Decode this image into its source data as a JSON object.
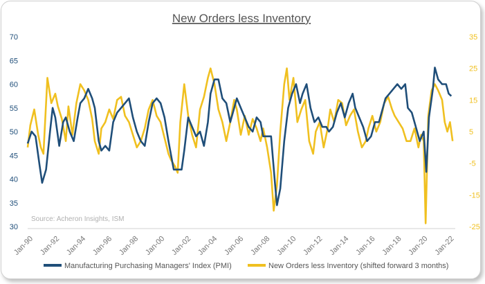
{
  "chart_data": {
    "type": "line",
    "title": "New Orders less Inventory",
    "source": "Source: Acheron Insights, ISM",
    "x_ticks": [
      "Jan-90",
      "Jan-92",
      "Jan-94",
      "Jan-96",
      "Jan-98",
      "Jan-00",
      "Jan-02",
      "Jan-04",
      "Jan-06",
      "Jan-08",
      "Jan-10",
      "Jan-12",
      "Jan-14",
      "Jan-16",
      "Jan-18",
      "Jan-20",
      "Jan-22"
    ],
    "x_range": [
      1990.0,
      2022.5
    ],
    "left_axis": {
      "ylim": [
        30,
        70
      ],
      "ticks": [
        30,
        35,
        40,
        45,
        50,
        55,
        60,
        65,
        70
      ],
      "color": "#1f4e79"
    },
    "right_axis": {
      "ylim": [
        -25,
        35
      ],
      "ticks": [
        -25,
        -15,
        -5,
        5,
        15,
        25,
        35
      ],
      "color": "#f0c020"
    },
    "series": [
      {
        "name": "Manufacturing Purchasing Managers' Index (PMI)",
        "axis": "left",
        "color": "#1f4e79",
        "points": [
          [
            1990.0,
            47.5
          ],
          [
            1990.3,
            50
          ],
          [
            1990.6,
            49
          ],
          [
            1990.9,
            43
          ],
          [
            1991.1,
            39.2
          ],
          [
            1991.4,
            42
          ],
          [
            1991.7,
            50
          ],
          [
            1991.9,
            55
          ],
          [
            1992.1,
            53
          ],
          [
            1992.4,
            47
          ],
          [
            1992.7,
            52
          ],
          [
            1992.9,
            53
          ],
          [
            1993.2,
            50
          ],
          [
            1993.5,
            48
          ],
          [
            1993.8,
            53
          ],
          [
            1994.0,
            56
          ],
          [
            1994.3,
            57
          ],
          [
            1994.6,
            59
          ],
          [
            1994.9,
            57
          ],
          [
            1995.1,
            55
          ],
          [
            1995.4,
            48
          ],
          [
            1995.6,
            46
          ],
          [
            1995.9,
            47
          ],
          [
            1996.2,
            46
          ],
          [
            1996.5,
            52
          ],
          [
            1996.8,
            54
          ],
          [
            1997.1,
            55
          ],
          [
            1997.4,
            56
          ],
          [
            1997.7,
            57
          ],
          [
            1998.0,
            53
          ],
          [
            1998.3,
            50
          ],
          [
            1998.6,
            48
          ],
          [
            1998.9,
            47
          ],
          [
            1999.2,
            52
          ],
          [
            1999.5,
            56
          ],
          [
            1999.8,
            57
          ],
          [
            2000.1,
            56
          ],
          [
            2000.4,
            53
          ],
          [
            2000.7,
            48
          ],
          [
            2000.9,
            45
          ],
          [
            2001.1,
            42
          ],
          [
            2001.4,
            42
          ],
          [
            2001.7,
            42
          ],
          [
            2001.9,
            46
          ],
          [
            2002.2,
            53
          ],
          [
            2002.5,
            51
          ],
          [
            2002.8,
            49
          ],
          [
            2003.1,
            50
          ],
          [
            2003.4,
            47
          ],
          [
            2003.7,
            52
          ],
          [
            2003.9,
            58
          ],
          [
            2004.2,
            61
          ],
          [
            2004.5,
            61
          ],
          [
            2004.8,
            57
          ],
          [
            2005.1,
            56
          ],
          [
            2005.4,
            52
          ],
          [
            2005.7,
            55
          ],
          [
            2005.9,
            57
          ],
          [
            2006.2,
            55
          ],
          [
            2006.5,
            53
          ],
          [
            2006.8,
            51
          ],
          [
            2007.1,
            50
          ],
          [
            2007.4,
            53
          ],
          [
            2007.7,
            52
          ],
          [
            2007.9,
            49
          ],
          [
            2008.2,
            49
          ],
          [
            2008.5,
            49
          ],
          [
            2008.8,
            39
          ],
          [
            2008.95,
            34.5
          ],
          [
            2009.2,
            38
          ],
          [
            2009.5,
            48
          ],
          [
            2009.8,
            55
          ],
          [
            2010.1,
            58
          ],
          [
            2010.4,
            60
          ],
          [
            2010.7,
            56
          ],
          [
            2010.9,
            58
          ],
          [
            2011.2,
            60
          ],
          [
            2011.5,
            55
          ],
          [
            2011.8,
            52
          ],
          [
            2012.1,
            53
          ],
          [
            2012.4,
            51
          ],
          [
            2012.7,
            51
          ],
          [
            2012.9,
            50
          ],
          [
            2013.2,
            51
          ],
          [
            2013.5,
            54
          ],
          [
            2013.8,
            56
          ],
          [
            2014.1,
            53
          ],
          [
            2014.4,
            56
          ],
          [
            2014.7,
            58
          ],
          [
            2014.9,
            55
          ],
          [
            2015.2,
            53
          ],
          [
            2015.5,
            51
          ],
          [
            2015.8,
            48
          ],
          [
            2016.1,
            49
          ],
          [
            2016.4,
            52
          ],
          [
            2016.7,
            52
          ],
          [
            2016.9,
            54
          ],
          [
            2017.2,
            57
          ],
          [
            2017.5,
            58
          ],
          [
            2017.8,
            59
          ],
          [
            2018.1,
            60
          ],
          [
            2018.4,
            59
          ],
          [
            2018.7,
            60
          ],
          [
            2018.9,
            55
          ],
          [
            2019.2,
            54
          ],
          [
            2019.5,
            51
          ],
          [
            2019.8,
            48
          ],
          [
            2020.1,
            50
          ],
          [
            2020.3,
            41.5
          ],
          [
            2020.5,
            53
          ],
          [
            2020.8,
            59
          ],
          [
            2020.95,
            63.5
          ],
          [
            2021.2,
            61
          ],
          [
            2021.5,
            60
          ],
          [
            2021.8,
            60
          ],
          [
            2022.0,
            58
          ],
          [
            2022.2,
            57.5
          ]
        ]
      },
      {
        "name": "New Orders less Inventory (shifted forward 3 months)",
        "axis": "right",
        "color": "#f0c020",
        "points": [
          [
            1990.0,
            0
          ],
          [
            1990.2,
            7
          ],
          [
            1990.5,
            12
          ],
          [
            1990.8,
            4
          ],
          [
            1991.0,
            0
          ],
          [
            1991.2,
            -2
          ],
          [
            1991.5,
            22
          ],
          [
            1991.8,
            14
          ],
          [
            1992.1,
            17
          ],
          [
            1992.3,
            13
          ],
          [
            1992.6,
            9
          ],
          [
            1992.9,
            2
          ],
          [
            1993.1,
            13
          ],
          [
            1993.4,
            4
          ],
          [
            1993.7,
            14
          ],
          [
            1994.0,
            20
          ],
          [
            1994.3,
            18
          ],
          [
            1994.6,
            15
          ],
          [
            1994.9,
            9
          ],
          [
            1995.1,
            2
          ],
          [
            1995.4,
            -2
          ],
          [
            1995.6,
            6
          ],
          [
            1995.9,
            8
          ],
          [
            1996.2,
            12
          ],
          [
            1996.5,
            9
          ],
          [
            1996.8,
            15
          ],
          [
            1997.1,
            16
          ],
          [
            1997.4,
            10
          ],
          [
            1997.7,
            8
          ],
          [
            1998.0,
            4
          ],
          [
            1998.3,
            0
          ],
          [
            1998.6,
            2
          ],
          [
            1998.9,
            6
          ],
          [
            1999.2,
            12
          ],
          [
            1999.5,
            15
          ],
          [
            1999.8,
            10
          ],
          [
            2000.1,
            8
          ],
          [
            2000.4,
            3
          ],
          [
            2000.7,
            -2
          ],
          [
            2000.9,
            -4
          ],
          [
            2001.2,
            -6
          ],
          [
            2001.4,
            -8
          ],
          [
            2001.6,
            8
          ],
          [
            2001.9,
            20
          ],
          [
            2002.2,
            10
          ],
          [
            2002.5,
            4
          ],
          [
            2002.8,
            0
          ],
          [
            2003.1,
            12
          ],
          [
            2003.4,
            16
          ],
          [
            2003.7,
            22
          ],
          [
            2003.9,
            25
          ],
          [
            2004.2,
            20
          ],
          [
            2004.5,
            12
          ],
          [
            2004.8,
            8
          ],
          [
            2005.1,
            2
          ],
          [
            2005.4,
            8
          ],
          [
            2005.7,
            15
          ],
          [
            2005.9,
            12
          ],
          [
            2006.2,
            4
          ],
          [
            2006.5,
            10
          ],
          [
            2006.8,
            4
          ],
          [
            2007.1,
            9
          ],
          [
            2007.4,
            6
          ],
          [
            2007.7,
            2
          ],
          [
            2007.9,
            6
          ],
          [
            2008.2,
            0
          ],
          [
            2008.5,
            -8
          ],
          [
            2008.7,
            -20
          ],
          [
            2008.95,
            -12
          ],
          [
            2009.2,
            5
          ],
          [
            2009.5,
            20
          ],
          [
            2009.7,
            25
          ],
          [
            2009.9,
            15
          ],
          [
            2010.2,
            22
          ],
          [
            2010.5,
            8
          ],
          [
            2010.8,
            12
          ],
          [
            2011.1,
            15
          ],
          [
            2011.4,
            2
          ],
          [
            2011.7,
            -2
          ],
          [
            2011.9,
            5
          ],
          [
            2012.2,
            8
          ],
          [
            2012.5,
            0
          ],
          [
            2012.8,
            6
          ],
          [
            2013.0,
            12
          ],
          [
            2013.3,
            8
          ],
          [
            2013.6,
            15
          ],
          [
            2013.9,
            14
          ],
          [
            2014.2,
            7
          ],
          [
            2014.5,
            10
          ],
          [
            2014.8,
            12
          ],
          [
            2015.1,
            5
          ],
          [
            2015.4,
            0
          ],
          [
            2015.7,
            2
          ],
          [
            2015.9,
            6
          ],
          [
            2016.2,
            10
          ],
          [
            2016.5,
            5
          ],
          [
            2016.8,
            8
          ],
          [
            2017.1,
            14
          ],
          [
            2017.4,
            16
          ],
          [
            2017.7,
            12
          ],
          [
            2017.9,
            10
          ],
          [
            2018.2,
            8
          ],
          [
            2018.5,
            6
          ],
          [
            2018.8,
            2
          ],
          [
            2019.1,
            2
          ],
          [
            2019.4,
            6
          ],
          [
            2019.7,
            0
          ],
          [
            2019.9,
            4
          ],
          [
            2020.1,
            2
          ],
          [
            2020.25,
            -24
          ],
          [
            2020.45,
            10
          ],
          [
            2020.7,
            18
          ],
          [
            2020.95,
            20
          ],
          [
            2021.2,
            18
          ],
          [
            2021.5,
            15
          ],
          [
            2021.7,
            8
          ],
          [
            2021.9,
            5
          ],
          [
            2022.1,
            8
          ],
          [
            2022.3,
            2
          ]
        ]
      }
    ]
  }
}
